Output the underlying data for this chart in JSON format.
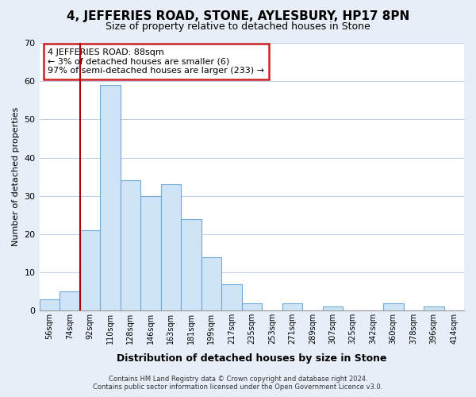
{
  "title": "4, JEFFERIES ROAD, STONE, AYLESBURY, HP17 8PN",
  "subtitle": "Size of property relative to detached houses in Stone",
  "xlabel": "Distribution of detached houses by size in Stone",
  "ylabel": "Number of detached properties",
  "bar_labels": [
    "56sqm",
    "74sqm",
    "92sqm",
    "110sqm",
    "128sqm",
    "146sqm",
    "163sqm",
    "181sqm",
    "199sqm",
    "217sqm",
    "235sqm",
    "253sqm",
    "271sqm",
    "289sqm",
    "307sqm",
    "325sqm",
    "342sqm",
    "360sqm",
    "378sqm",
    "396sqm",
    "414sqm"
  ],
  "bar_heights": [
    3,
    5,
    21,
    59,
    34,
    30,
    33,
    24,
    14,
    7,
    2,
    0,
    2,
    0,
    1,
    0,
    0,
    2,
    0,
    1,
    0
  ],
  "bar_color": "#d0e4f7",
  "bar_edge_color": "#6fa8d4",
  "vline_color": "#aa0000",
  "vline_index": 2,
  "ylim": [
    0,
    70
  ],
  "yticks": [
    0,
    10,
    20,
    30,
    40,
    50,
    60,
    70
  ],
  "annotation_line1": "4 JEFFERIES ROAD: 88sqm",
  "annotation_line2": "← 3% of detached houses are smaller (6)",
  "annotation_line3": "97% of semi-detached houses are larger (233) →",
  "footer_line1": "Contains HM Land Registry data © Crown copyright and database right 2024.",
  "footer_line2": "Contains public sector information licensed under the Open Government Licence v3.0.",
  "background_color": "#e8eef7",
  "plot_background_color": "#ffffff",
  "grid_color": "#c0d0e8"
}
